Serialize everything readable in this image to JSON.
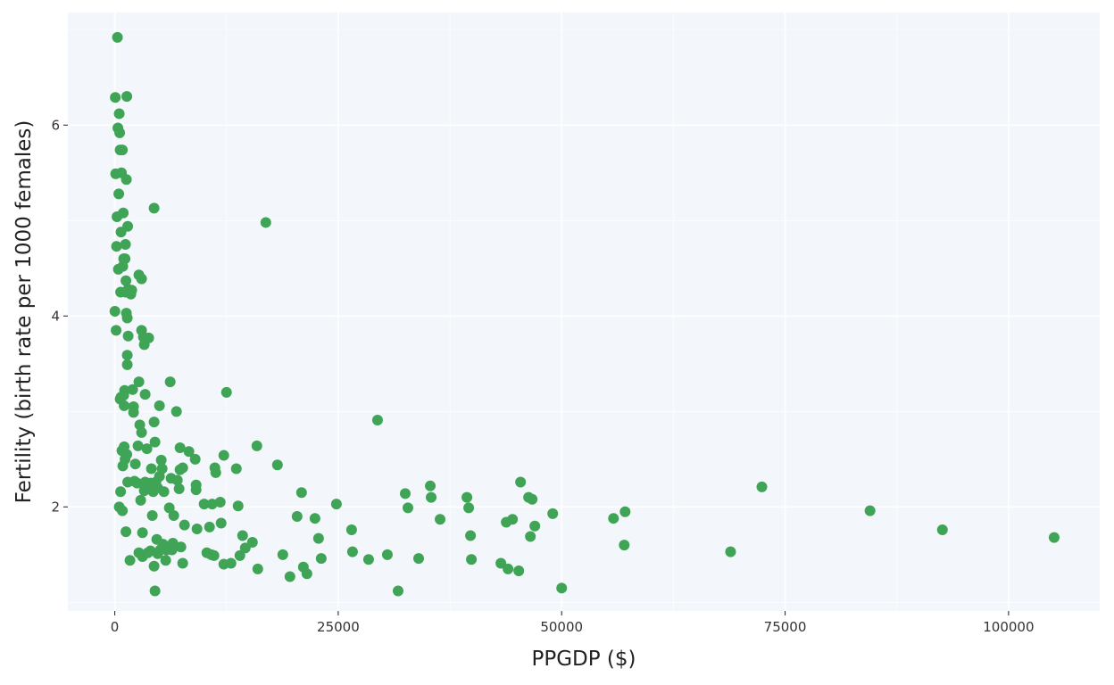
{
  "chart_data": {
    "type": "scatter",
    "title": "",
    "xlabel": "PPGDP ($)",
    "ylabel": "Fertility (birth rate per 1000 females)",
    "xlim": [
      -5250,
      110200
    ],
    "ylim": [
      0.91,
      7.18
    ],
    "x_ticks": [
      0,
      25000,
      50000,
      75000,
      100000
    ],
    "y_ticks": [
      2,
      4,
      6
    ],
    "grid": true,
    "panel_color": "#f3f6fb",
    "point_color": "#3fa456",
    "legend": "none",
    "series": [
      {
        "points": [
          [
            60,
            6.29
          ],
          [
            20,
            4.05
          ],
          [
            100,
            5.49
          ],
          [
            150,
            3.85
          ],
          [
            200,
            4.73
          ],
          [
            250,
            5.04
          ],
          [
            300,
            6.92
          ],
          [
            350,
            5.97
          ],
          [
            400,
            4.49
          ],
          [
            450,
            5.28
          ],
          [
            500,
            6.12
          ],
          [
            500,
            2.0
          ],
          [
            550,
            5.92
          ],
          [
            600,
            3.13
          ],
          [
            600,
            5.74
          ],
          [
            650,
            4.25
          ],
          [
            650,
            2.16
          ],
          [
            700,
            3.15
          ],
          [
            700,
            4.88
          ],
          [
            750,
            5.5
          ],
          [
            800,
            2.59
          ],
          [
            850,
            5.74
          ],
          [
            850,
            1.96
          ],
          [
            900,
            4.52
          ],
          [
            900,
            2.43
          ],
          [
            950,
            5.08
          ],
          [
            1000,
            3.17
          ],
          [
            1000,
            4.6
          ],
          [
            1050,
            2.63
          ],
          [
            1050,
            3.06
          ],
          [
            1100,
            3.22
          ],
          [
            1150,
            4.6
          ],
          [
            1150,
            2.5
          ],
          [
            1200,
            4.75
          ],
          [
            1200,
            4.25
          ],
          [
            1250,
            4.37
          ],
          [
            1250,
            1.74
          ],
          [
            1300,
            4.03
          ],
          [
            1300,
            5.43
          ],
          [
            1350,
            6.3
          ],
          [
            1350,
            2.55
          ],
          [
            1400,
            3.98
          ],
          [
            1400,
            3.49
          ],
          [
            1400,
            3.59
          ],
          [
            1450,
            4.94
          ],
          [
            1450,
            2.26
          ],
          [
            1500,
            3.79
          ],
          [
            1500,
            4.28
          ],
          [
            1700,
            1.44
          ],
          [
            1800,
            4.23
          ],
          [
            1900,
            4.27
          ],
          [
            2000,
            3.23
          ],
          [
            2100,
            3.05
          ],
          [
            2100,
            2.99
          ],
          [
            2200,
            2.27
          ],
          [
            2300,
            2.45
          ],
          [
            2500,
            2.25
          ],
          [
            2600,
            2.64
          ],
          [
            2700,
            3.31
          ],
          [
            2700,
            4.43
          ],
          [
            2700,
            1.52
          ],
          [
            2800,
            2.86
          ],
          [
            2900,
            2.07
          ],
          [
            3000,
            3.85
          ],
          [
            3000,
            2.78
          ],
          [
            3000,
            4.39
          ],
          [
            3100,
            1.73
          ],
          [
            3100,
            1.48
          ],
          [
            3200,
            3.78
          ],
          [
            3300,
            3.7
          ],
          [
            3300,
            2.17
          ],
          [
            3400,
            3.18
          ],
          [
            3400,
            2.26
          ],
          [
            3600,
            2.61
          ],
          [
            3600,
            2.2
          ],
          [
            3700,
            1.52
          ],
          [
            3800,
            3.77
          ],
          [
            4000,
            2.25
          ],
          [
            4000,
            1.54
          ],
          [
            4100,
            2.4
          ],
          [
            4200,
            1.91
          ],
          [
            4300,
            2.16
          ],
          [
            4400,
            2.89
          ],
          [
            4400,
            1.38
          ],
          [
            4400,
            5.13
          ],
          [
            4500,
            2.68
          ],
          [
            4500,
            1.12
          ],
          [
            4600,
            2.26
          ],
          [
            4700,
            1.66
          ],
          [
            4800,
            2.2
          ],
          [
            4800,
            1.51
          ],
          [
            5000,
            2.32
          ],
          [
            5000,
            3.06
          ],
          [
            5100,
            1.55
          ],
          [
            5200,
            2.49
          ],
          [
            5300,
            2.4
          ],
          [
            5300,
            1.57
          ],
          [
            5400,
            1.61
          ],
          [
            5500,
            2.16
          ],
          [
            5700,
            1.44
          ],
          [
            5800,
            1.55
          ],
          [
            6100,
            1.99
          ],
          [
            6200,
            3.31
          ],
          [
            6300,
            2.3
          ],
          [
            6400,
            1.55
          ],
          [
            6500,
            1.62
          ],
          [
            6600,
            1.91
          ],
          [
            6900,
            3.0
          ],
          [
            7000,
            2.28
          ],
          [
            7200,
            2.19
          ],
          [
            7300,
            2.39
          ],
          [
            7300,
            2.62
          ],
          [
            7400,
            1.58
          ],
          [
            7600,
            1.41
          ],
          [
            7600,
            2.41
          ],
          [
            7800,
            1.81
          ],
          [
            8300,
            2.58
          ],
          [
            9000,
            2.5
          ],
          [
            9100,
            2.23
          ],
          [
            9100,
            2.18
          ],
          [
            9200,
            1.77
          ],
          [
            10000,
            2.03
          ],
          [
            10300,
            1.52
          ],
          [
            10600,
            1.79
          ],
          [
            10800,
            1.5
          ],
          [
            10900,
            2.03
          ],
          [
            11100,
            1.49
          ],
          [
            11200,
            2.41
          ],
          [
            11300,
            2.36
          ],
          [
            11800,
            2.05
          ],
          [
            11900,
            1.83
          ],
          [
            12200,
            1.4
          ],
          [
            12200,
            2.54
          ],
          [
            12500,
            3.2
          ],
          [
            13000,
            1.41
          ],
          [
            13600,
            2.4
          ],
          [
            13800,
            2.01
          ],
          [
            14000,
            1.49
          ],
          [
            14300,
            1.7
          ],
          [
            14600,
            1.57
          ],
          [
            15400,
            1.63
          ],
          [
            15900,
            2.64
          ],
          [
            16000,
            1.35
          ],
          [
            16900,
            4.98
          ],
          [
            18200,
            2.44
          ],
          [
            18800,
            1.5
          ],
          [
            19600,
            1.27
          ],
          [
            20400,
            1.9
          ],
          [
            20900,
            2.15
          ],
          [
            21100,
            1.37
          ],
          [
            21500,
            1.3
          ],
          [
            22400,
            1.88
          ],
          [
            22800,
            1.67
          ],
          [
            23100,
            1.46
          ],
          [
            24800,
            2.03
          ],
          [
            26500,
            1.76
          ],
          [
            26600,
            1.53
          ],
          [
            28400,
            1.45
          ],
          [
            29400,
            2.91
          ],
          [
            30500,
            1.5
          ],
          [
            31700,
            1.12
          ],
          [
            32500,
            2.14
          ],
          [
            32800,
            1.99
          ],
          [
            34000,
            1.46
          ],
          [
            35300,
            2.22
          ],
          [
            35400,
            2.1
          ],
          [
            36400,
            1.87
          ],
          [
            39400,
            2.1
          ],
          [
            39600,
            1.99
          ],
          [
            39800,
            1.7
          ],
          [
            39900,
            1.45
          ],
          [
            43200,
            1.41
          ],
          [
            43800,
            1.84
          ],
          [
            44000,
            1.35
          ],
          [
            44500,
            1.87
          ],
          [
            45200,
            1.33
          ],
          [
            45400,
            2.26
          ],
          [
            46300,
            2.1
          ],
          [
            46500,
            1.69
          ],
          [
            46700,
            2.08
          ],
          [
            47000,
            1.8
          ],
          [
            49000,
            1.93
          ],
          [
            50000,
            1.15
          ],
          [
            55800,
            1.88
          ],
          [
            57000,
            1.6
          ],
          [
            57100,
            1.95
          ],
          [
            68900,
            1.53
          ],
          [
            72400,
            2.21
          ],
          [
            84500,
            1.96
          ],
          [
            92600,
            1.76
          ],
          [
            105100,
            1.68
          ]
        ]
      }
    ]
  }
}
